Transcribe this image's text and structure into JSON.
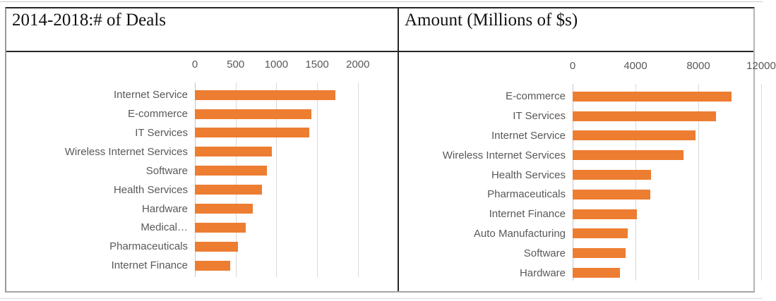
{
  "colors": {
    "bar_fill": "#ED7D31",
    "gridline": "#D9D9D9",
    "axis_text": "#595959",
    "title_text": "#111111",
    "table_border_dark": "#262626",
    "table_border_light": "#B3B3B3"
  },
  "chart_data": [
    {
      "type": "bar",
      "orientation": "horizontal",
      "title": "2014-2018:# of Deals",
      "categories": [
        "Internet Service",
        "E-commerce",
        "IT Services",
        "Wireless Internet Services",
        "Software",
        "Health Services",
        "Hardware",
        "Medical…",
        "Pharmaceuticals",
        "Internet Finance"
      ],
      "values": [
        1720,
        1430,
        1400,
        940,
        885,
        825,
        710,
        620,
        530,
        435
      ],
      "tick_values": [
        0,
        500,
        1000,
        1500,
        2000
      ],
      "tick_labels": [
        "0",
        "500",
        "1000",
        "1500",
        "2000"
      ],
      "xlim": [
        0,
        2400
      ],
      "grid": true,
      "legend": false
    },
    {
      "type": "bar",
      "orientation": "horizontal",
      "title": "Amount (Millions of $s)",
      "categories": [
        "E-commerce",
        "IT Services",
        "Internet Service",
        "Wireless Internet Services",
        "Health Services",
        "Pharmaceuticals",
        "Internet Finance",
        "Auto Manufacturing",
        "Software",
        "Hardware"
      ],
      "values": [
        10100,
        9100,
        7820,
        7060,
        5000,
        4950,
        4090,
        3510,
        3370,
        3000
      ],
      "tick_values": [
        0,
        4000,
        8000,
        12000
      ],
      "tick_labels": [
        "0",
        "4000",
        "8000",
        "12000"
      ],
      "xlim": [
        0,
        11500
      ],
      "grid": true,
      "legend": false
    }
  ]
}
